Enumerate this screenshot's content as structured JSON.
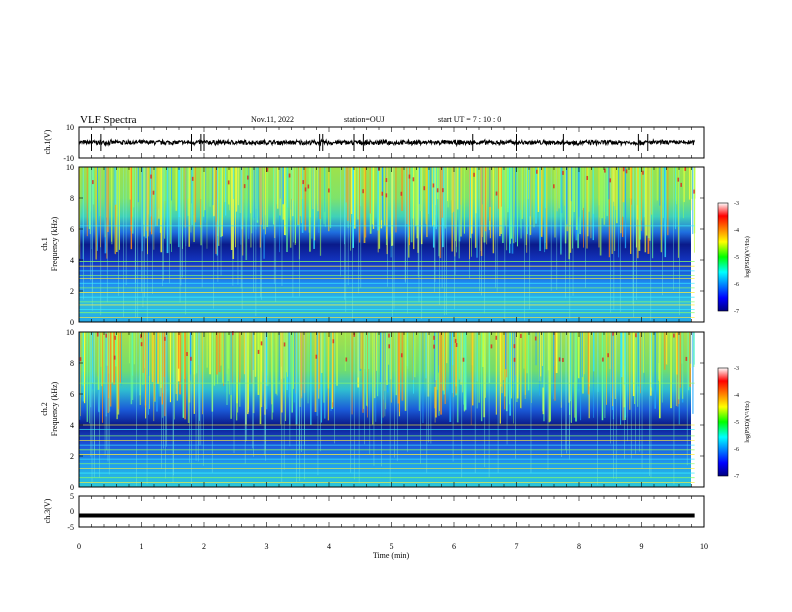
{
  "header": {
    "title": "VLF Spectra",
    "date": "Nov.11, 2022",
    "station": "station=OUJ",
    "start": "start  UT =   7 : 10 : 0"
  },
  "chart_data": [
    {
      "type": "line",
      "panel": "waveform-ch1",
      "ylabel": "ch.1(V)",
      "ylim": [
        -10,
        10
      ],
      "y_tick_labels": [
        "10",
        "-10"
      ],
      "xlim": [
        0,
        10
      ],
      "series": [
        {
          "name": "ch.1",
          "baseline": 0,
          "typical_amplitude": 1.5,
          "x_end": 9.85
        }
      ]
    },
    {
      "type": "heatmap",
      "panel": "spectrogram-ch1",
      "ylabel_line1": "ch.1",
      "ylabel_line2": "Frequency (kHz)",
      "ylim": [
        0,
        10
      ],
      "y_tick_labels": [
        "0",
        "2",
        "4",
        "6",
        "8",
        "10"
      ],
      "xlim": [
        0,
        10
      ],
      "x_end": 9.85,
      "colorbar": {
        "label": "log(PSD)(V²/Hz)",
        "range": [
          -7,
          -3
        ],
        "tick_labels": [
          "-3",
          "-4",
          "-5",
          "-6",
          "-7"
        ]
      },
      "horizontal_lines_khz": [
        0.3,
        0.6,
        0.8,
        1.1,
        1.3,
        1.6,
        1.9,
        2.2,
        2.5,
        2.8,
        3.0,
        3.3,
        3.6,
        3.9,
        6.2
      ],
      "bands_khz": [
        [
          4.0,
          6.0
        ],
        [
          6.0,
          10.0
        ]
      ]
    },
    {
      "type": "heatmap",
      "panel": "spectrogram-ch2",
      "ylabel_line1": "ch.2",
      "ylabel_line2": "Frequency (kHz)",
      "ylim": [
        0,
        10
      ],
      "y_tick_labels": [
        "0",
        "2",
        "4",
        "6",
        "8",
        "10"
      ],
      "xlim": [
        0,
        10
      ],
      "x_end": 9.85,
      "colorbar": {
        "label": "log(PSD)(V²/Hz)",
        "range": [
          -7,
          -3
        ],
        "tick_labels": [
          "-3",
          "-4",
          "-5",
          "-6",
          "-7"
        ]
      },
      "horizontal_lines_khz": [
        0.3,
        0.6,
        0.9,
        1.2,
        1.5,
        1.8,
        2.1,
        2.4,
        2.7,
        3.0,
        3.3,
        3.7,
        4.0,
        6.7
      ],
      "bands_khz": [
        [
          4.0,
          6.0
        ],
        [
          6.0,
          10.0
        ]
      ]
    },
    {
      "type": "line",
      "panel": "waveform-ch3",
      "ylabel": "ch.3(V)",
      "ylim": [
        -5,
        5
      ],
      "y_tick_labels": [
        "5",
        "0",
        "-5"
      ],
      "xlim": [
        0,
        10
      ],
      "series": [
        {
          "name": "ch.3",
          "value": -1.3,
          "x_end": 9.85
        }
      ]
    }
  ],
  "xaxis": {
    "xlabel": "Time (min)",
    "range": [
      0,
      10
    ],
    "tick_labels": [
      "0",
      "1",
      "2",
      "3",
      "4",
      "5",
      "6",
      "7",
      "8",
      "9",
      "10"
    ]
  },
  "colors": {
    "frame": "#000000",
    "background": "#ffffff"
  }
}
